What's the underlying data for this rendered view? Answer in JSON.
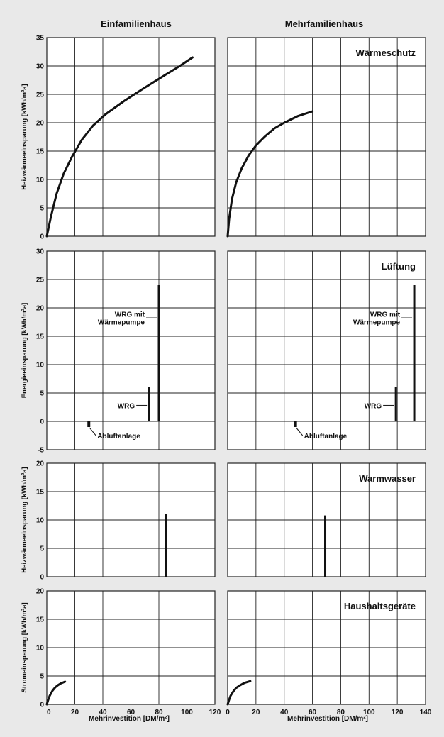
{
  "figure": {
    "col_titles": [
      "Einfamilienhaus",
      "Mehrfamilienhaus"
    ],
    "x_label": "Mehrinvestition  [DM/m²]",
    "colors": {
      "background": "#e9e9e9",
      "plot_bg": "#ffffff",
      "line": "#111111",
      "grid": "#222222"
    }
  },
  "chart_data": [
    {
      "id": "waermeschutz",
      "type": "line",
      "title": "Wärmeschutz",
      "ylabel": "Heizwärmeeinsparung [kWh/m²a]",
      "ylim": [
        0,
        35
      ],
      "y_ticks": [
        0,
        5,
        10,
        15,
        20,
        25,
        30,
        35
      ],
      "panels": [
        {
          "house": "Einfamilienhaus",
          "xlim": [
            0,
            120
          ],
          "series": [
            {
              "x": [
                0,
                3,
                7,
                12,
                18,
                25,
                33,
                42,
                55,
                70,
                85,
                95,
                104
              ],
              "y": [
                0,
                3.5,
                7.5,
                11,
                14,
                17,
                19.5,
                21.5,
                23.8,
                26.2,
                28.5,
                30,
                31.5
              ]
            }
          ]
        },
        {
          "house": "Mehrfamilienhaus",
          "xlim": [
            0,
            140
          ],
          "series": [
            {
              "x": [
                0,
                1,
                3,
                6,
                10,
                15,
                20,
                26,
                33,
                40,
                50,
                60
              ],
              "y": [
                0,
                3,
                6.5,
                9.5,
                12,
                14.3,
                16,
                17.5,
                19,
                20,
                21.2,
                22
              ]
            }
          ]
        }
      ]
    },
    {
      "id": "lueftung",
      "type": "bar",
      "title": "Lüftung",
      "ylabel": "Energieeinsparung [kWh/m²a]",
      "ylim": [
        -5,
        30
      ],
      "y_ticks": [
        -5,
        0,
        5,
        10,
        15,
        20,
        25,
        30
      ],
      "panels": [
        {
          "house": "Einfamilienhaus",
          "xlim": [
            0,
            120
          ],
          "bars": [
            {
              "label": "Abluftanlage",
              "x": 30,
              "value": -1
            },
            {
              "label": "WRG",
              "x": 73,
              "value": 6
            },
            {
              "label": "WRG mit\nWärmepumpe",
              "x": 80,
              "value": 24
            }
          ]
        },
        {
          "house": "Mehrfamilienhaus",
          "xlim": [
            0,
            140
          ],
          "bars": [
            {
              "label": "Abluftanlage",
              "x": 48,
              "value": -1
            },
            {
              "label": "WRG",
              "x": 119,
              "value": 6
            },
            {
              "label": "WRG mit\nWärmepumpe",
              "x": 132,
              "value": 24
            }
          ]
        }
      ]
    },
    {
      "id": "warmwasser",
      "type": "bar",
      "title": "Warmwasser",
      "ylabel": "Heizwärmeeinsparung [kWh/m²a]",
      "ylim": [
        0,
        20
      ],
      "y_ticks": [
        0,
        5,
        10,
        15,
        20
      ],
      "panels": [
        {
          "house": "Einfamilienhaus",
          "xlim": [
            0,
            120
          ],
          "bars": [
            {
              "x": 85,
              "value": 11
            }
          ]
        },
        {
          "house": "Mehrfamilienhaus",
          "xlim": [
            0,
            140
          ],
          "bars": [
            {
              "x": 69,
              "value": 10.8
            }
          ]
        }
      ]
    },
    {
      "id": "haushaltsgeraete",
      "type": "line",
      "title": "Haushaltsgeräte",
      "ylabel": "Stromeinsparung [kWh/m²a]",
      "ylim": [
        0,
        20
      ],
      "y_ticks": [
        0,
        5,
        10,
        15,
        20
      ],
      "x_ticks": {
        "Einfamilienhaus": [
          0,
          20,
          40,
          60,
          80,
          100,
          120
        ],
        "Mehrfamilienhaus": [
          0,
          20,
          40,
          60,
          80,
          100,
          120,
          140
        ]
      },
      "panels": [
        {
          "house": "Einfamilienhaus",
          "xlim": [
            0,
            120
          ],
          "series": [
            {
              "x": [
                0,
                1,
                2,
                4,
                6,
                8,
                10,
                13
              ],
              "y": [
                0,
                0.8,
                1.5,
                2.4,
                3.0,
                3.4,
                3.7,
                4.0
              ]
            }
          ]
        },
        {
          "house": "Mehrfamilienhaus",
          "xlim": [
            0,
            140
          ],
          "series": [
            {
              "x": [
                0,
                1,
                2,
                4,
                6,
                9,
                12,
                16
              ],
              "y": [
                0,
                0.8,
                1.5,
                2.3,
                2.9,
                3.4,
                3.8,
                4.1
              ]
            }
          ]
        }
      ]
    }
  ]
}
